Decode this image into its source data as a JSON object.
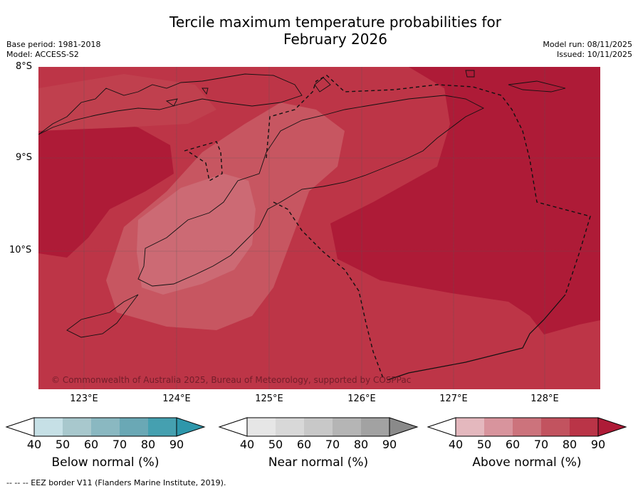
{
  "title": {
    "line1": "Tercile maximum temperature probabilities for",
    "line2": "February 2026"
  },
  "meta_left": {
    "base_period": "Base period: 1981-2018",
    "model": "Model: ACCESS-S2"
  },
  "meta_right": {
    "model_run": "Model run: 08/11/2025",
    "issued": "Issued: 10/11/2025"
  },
  "map": {
    "lat_labels": [
      "8°S",
      "9°S",
      "10°S"
    ],
    "lon_labels": [
      "123°E",
      "124°E",
      "125°E",
      "126°E",
      "127°E",
      "128°E"
    ],
    "copyright": "© Commonwealth of Australia 2025, Bureau of Meteorology, supported by COSPPac"
  },
  "colorbars": [
    {
      "title": "Below normal (%)",
      "ticks": [
        "40",
        "50",
        "60",
        "70",
        "80",
        "90"
      ],
      "colors": [
        "#c6e0e6",
        "#a8c8cd",
        "#8ab8c1",
        "#6aa8b5",
        "#45a0b0",
        "#2e97ab"
      ]
    },
    {
      "title": "Near normal (%)",
      "ticks": [
        "40",
        "50",
        "60",
        "70",
        "80",
        "90"
      ],
      "colors": [
        "#e6e6e6",
        "#d8d8d8",
        "#c8c8c8",
        "#b5b5b5",
        "#a2a2a2",
        "#8a8a8a"
      ]
    },
    {
      "title": "Above normal (%)",
      "ticks": [
        "40",
        "50",
        "60",
        "70",
        "80",
        "90"
      ],
      "colors": [
        "#e4b8be",
        "#d8949d",
        "#cc737c",
        "#c2535f",
        "#ba3447",
        "#ae1b37"
      ]
    }
  ],
  "footer": "--  --  -- EEZ border V11 (Flanders Marine Institute, 2019)."
}
